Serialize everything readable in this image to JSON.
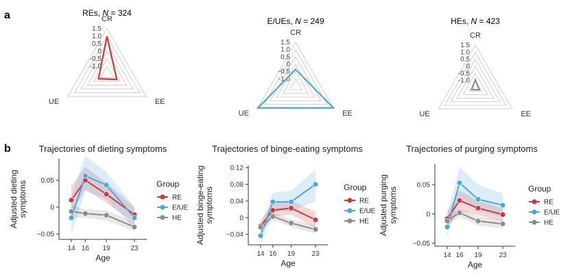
{
  "panel_labels": {
    "a": "a",
    "b": "b"
  },
  "colors": {
    "RE": "#d1373a",
    "E/UE": "#4ca7dc",
    "HE": "#8c8c8c",
    "grid": "#cfcfcf",
    "axis": "#333333"
  },
  "chart_data": [
    {
      "type": "radar",
      "title_prefix": "REs, ",
      "n_label": "N",
      "n_value": " = 324",
      "axes": [
        "CR",
        "EE",
        "UE"
      ],
      "rlim": [
        -1.5,
        1.5
      ],
      "ticks": [
        "1.5",
        "1.0",
        "0.5",
        "0",
        "-0.5",
        "-1.0"
      ],
      "tick_values": [
        1.5,
        1.0,
        0.5,
        0,
        -0.5,
        -1.0
      ],
      "values": [
        1.0,
        -0.75,
        -0.85
      ],
      "group": "RE"
    },
    {
      "type": "radar",
      "title_prefix": "E/UEs, ",
      "n_label": "N",
      "n_value": " = 249",
      "axes": [
        "CR",
        "EE",
        "UE"
      ],
      "rlim": [
        -1.5,
        1.5
      ],
      "ticks": [
        "1.5",
        "1.0",
        "0.5",
        "0",
        "-0.5",
        "-1.0"
      ],
      "tick_values": [
        1.5,
        1.0,
        0.5,
        0,
        -0.5,
        -1.0
      ],
      "values": [
        -0.35,
        1.48,
        1.48
      ],
      "group": "E/UE"
    },
    {
      "type": "radar",
      "title_prefix": "HEs, ",
      "n_label": "N",
      "n_value": " = 423",
      "axes": [
        "CR",
        "EE",
        "UE"
      ],
      "rlim": [
        -1.5,
        1.5
      ],
      "ticks": [
        "1.5",
        "1.0",
        "0.5",
        "0",
        "-0.5",
        "-1.0"
      ],
      "tick_values": [
        1.5,
        1.0,
        0.5,
        0,
        -0.5,
        -1.0
      ],
      "values": [
        -0.95,
        -1.18,
        -1.2
      ],
      "group": "HE"
    },
    {
      "type": "line",
      "title": "Trajectories of dieting symptoms",
      "ylabel": [
        "Adjusted dieting",
        "symptoms"
      ],
      "xlabel": "Age",
      "x": [
        14,
        16,
        19,
        23
      ],
      "xticks": [
        "14",
        "16",
        "19",
        "23"
      ],
      "ylim": [
        -0.06,
        0.09
      ],
      "yticks": [
        -0.05,
        0,
        0.05
      ],
      "ytick_labels": [
        "−0.05",
        "0",
        "0.05"
      ],
      "legend_title": "Group",
      "series": [
        {
          "name": "RE",
          "values": [
            0.013,
            0.05,
            0.024,
            -0.014
          ],
          "lower": [
            -0.01,
            0.033,
            0.008,
            -0.03
          ],
          "upper": [
            0.04,
            0.075,
            0.045,
            0.0
          ]
        },
        {
          "name": "E/UE",
          "values": [
            -0.02,
            0.058,
            0.041,
            -0.02
          ],
          "lower": [
            -0.05,
            0.03,
            0.015,
            -0.04
          ],
          "upper": [
            0.02,
            0.095,
            0.065,
            0.0
          ]
        },
        {
          "name": "HE",
          "values": [
            -0.008,
            -0.012,
            -0.015,
            -0.037
          ],
          "lower": [
            -0.02,
            -0.02,
            -0.025,
            -0.045
          ],
          "upper": [
            0.003,
            -0.004,
            -0.006,
            -0.028
          ]
        }
      ]
    },
    {
      "type": "line",
      "title": "Trajectories of binge-eating symptoms",
      "ylabel": [
        "Adjusted binge-eating",
        "symptoms"
      ],
      "xlabel": "Age",
      "x": [
        14,
        16,
        19,
        23
      ],
      "xticks": [
        "14",
        "16",
        "19",
        "23"
      ],
      "ylim": [
        -0.065,
        0.125
      ],
      "yticks": [
        -0.04,
        0,
        0.04,
        0.08,
        0.12
      ],
      "ytick_labels": [
        "−0.04",
        "0",
        "0.04",
        "0.08",
        "0.12"
      ],
      "legend_title": "Group",
      "series": [
        {
          "name": "RE",
          "values": [
            -0.02,
            0.018,
            0.023,
            -0.005
          ],
          "lower": [
            -0.035,
            0.002,
            0.008,
            -0.025
          ],
          "upper": [
            -0.005,
            0.035,
            0.04,
            0.015
          ]
        },
        {
          "name": "E/UE",
          "values": [
            -0.043,
            0.038,
            0.038,
            0.08
          ],
          "lower": [
            -0.065,
            0.015,
            0.015,
            0.04
          ],
          "upper": [
            -0.02,
            0.06,
            0.065,
            0.115
          ]
        },
        {
          "name": "HE",
          "values": [
            -0.023,
            0.003,
            -0.013,
            -0.028
          ],
          "lower": [
            -0.033,
            -0.006,
            -0.022,
            -0.038
          ],
          "upper": [
            -0.013,
            0.013,
            -0.004,
            -0.018
          ]
        }
      ]
    },
    {
      "type": "line",
      "title": "Trajectories of purging symptoms",
      "ylabel": [
        "Adjusted purging",
        "symptoms"
      ],
      "xlabel": "Age",
      "x": [
        14,
        16,
        19,
        23
      ],
      "xticks": [
        "14",
        "16",
        "19",
        "23"
      ],
      "ylim": [
        -0.055,
        0.085
      ],
      "yticks": [
        -0.05,
        0,
        0.05
      ],
      "ytick_labels": [
        "−0.05",
        "0",
        "0.05"
      ],
      "legend_title": "Group",
      "series": [
        {
          "name": "RE",
          "values": [
            -0.008,
            0.023,
            0.01,
            -0.001
          ],
          "lower": [
            -0.022,
            0.005,
            -0.002,
            -0.012
          ],
          "upper": [
            0.005,
            0.04,
            0.022,
            0.01
          ]
        },
        {
          "name": "E/UE",
          "values": [
            -0.022,
            0.053,
            0.025,
            0.015
          ],
          "lower": [
            -0.04,
            0.03,
            0.005,
            -0.005
          ],
          "upper": [
            0.0,
            0.08,
            0.05,
            0.035
          ]
        },
        {
          "name": "HE",
          "values": [
            -0.012,
            0.002,
            -0.012,
            -0.017
          ],
          "lower": [
            -0.02,
            -0.005,
            -0.02,
            -0.025
          ],
          "upper": [
            -0.004,
            0.009,
            -0.004,
            -0.009
          ]
        }
      ]
    }
  ]
}
